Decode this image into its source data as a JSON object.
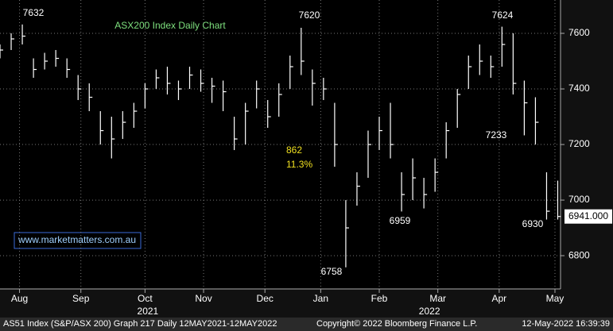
{
  "chart_data": {
    "type": "ohlc",
    "title": "ASX200 Index Daily Chart",
    "watermark": "www.marketmatters.com.au",
    "x": [
      0,
      4,
      8,
      12,
      16,
      20,
      24,
      28,
      32,
      36,
      40,
      44,
      48,
      52,
      56,
      60,
      64,
      68,
      72,
      76,
      80,
      84,
      88,
      92,
      96,
      100,
      104,
      108,
      112,
      116,
      120,
      124,
      128,
      132,
      136,
      140,
      144,
      148,
      152,
      156,
      160,
      164,
      168,
      172,
      176,
      180,
      184,
      188,
      192,
      196,
      200
    ],
    "high": [
      7560,
      7600,
      7632,
      7510,
      7530,
      7540,
      7510,
      7450,
      7420,
      7320,
      7300,
      7320,
      7350,
      7420,
      7470,
      7480,
      7430,
      7480,
      7470,
      7440,
      7430,
      7300,
      7350,
      7430,
      7360,
      7420,
      7520,
      7620,
      7470,
      7440,
      7350,
      7000,
      7100,
      7250,
      7300,
      7350,
      7100,
      7150,
      7080,
      7150,
      7280,
      7400,
      7520,
      7560,
      7520,
      7624,
      7600,
      7430,
      7370,
      7100,
      7070
    ],
    "low": [
      7510,
      7540,
      7560,
      7440,
      7470,
      7480,
      7440,
      7360,
      7320,
      7200,
      7150,
      7220,
      7260,
      7330,
      7400,
      7380,
      7360,
      7400,
      7390,
      7350,
      7320,
      7180,
      7200,
      7330,
      7260,
      7300,
      7400,
      7450,
      7340,
      7360,
      7120,
      6758,
      6980,
      7080,
      7180,
      7150,
      6959,
      7000,
      6970,
      7030,
      7150,
      7260,
      7400,
      7450,
      7440,
      7480,
      7380,
      7233,
      7200,
      6930,
      6930
    ],
    "close": [
      7540,
      7580,
      7590,
      7470,
      7500,
      7510,
      7470,
      7400,
      7370,
      7250,
      7220,
      7280,
      7320,
      7400,
      7440,
      7420,
      7400,
      7450,
      7420,
      7410,
      7390,
      7220,
      7320,
      7400,
      7300,
      7380,
      7480,
      7500,
      7420,
      7400,
      7200,
      6900,
      7050,
      7200,
      7250,
      7200,
      7020,
      7080,
      7020,
      7100,
      7250,
      7380,
      7480,
      7500,
      7480,
      7560,
      7420,
      7350,
      7280,
      6960,
      6941
    ],
    "color": "#ffffff",
    "xlim": [
      0,
      201
    ],
    "xticks": [
      {
        "value": 7,
        "label": "Aug"
      },
      {
        "value": 29,
        "label": "Sep"
      },
      {
        "value": 52,
        "label": "Oct"
      },
      {
        "value": 73,
        "label": "Nov"
      },
      {
        "value": 95,
        "label": "Dec"
      },
      {
        "value": 115,
        "label": "Jan"
      },
      {
        "value": 136,
        "label": "Feb"
      },
      {
        "value": 157,
        "label": "Mar"
      },
      {
        "value": 179,
        "label": "Apr"
      },
      {
        "value": 199,
        "label": "May"
      }
    ],
    "years": [
      {
        "value": 53,
        "label": "2021"
      },
      {
        "value": 154,
        "label": "2022"
      }
    ],
    "ylim": [
      6686,
      7720
    ],
    "yticks": [
      6800,
      7000,
      7200,
      7400,
      7600
    ],
    "grid": true,
    "annotations": [
      7632,
      7620,
      7624,
      7233,
      6758,
      6959,
      6930
    ],
    "range_note": [
      862,
      "11.3%"
    ],
    "last_value": {
      "value": 6941,
      "label": "6941.000"
    },
    "footer": [
      "AS51 Index (S&P/ASX 200) Graph 217  Daily 12MAY2021-12MAY2022",
      "Copyright© 2022 Bloomberg Finance L.P.",
      "12-May-2022 16:39:39"
    ]
  }
}
